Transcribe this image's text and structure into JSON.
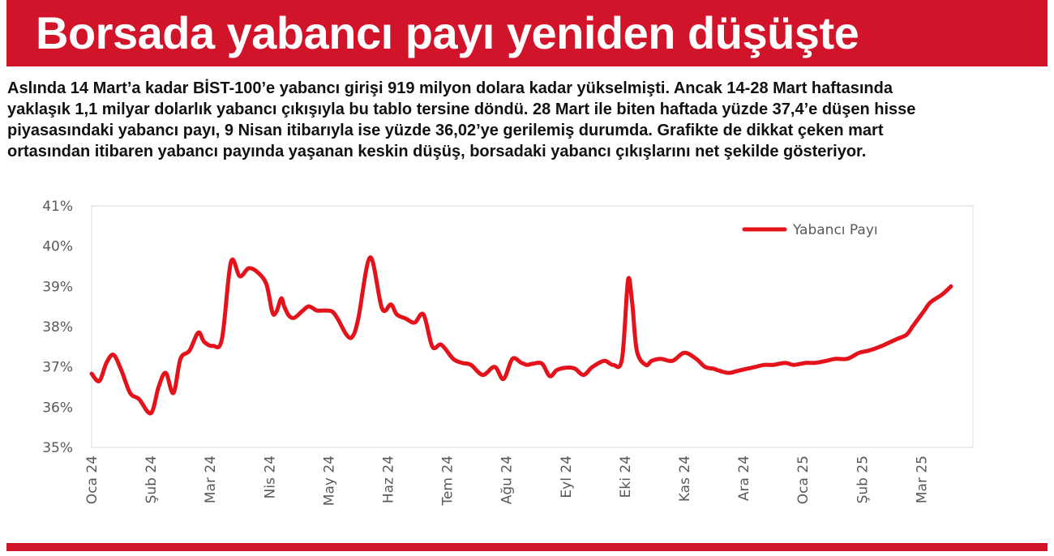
{
  "header": {
    "title": "Borsada yabancı payı yeniden düşüşte"
  },
  "article": {
    "lines": [
      "Aslında 14 Mart’a kadar BİST-100’e yabancı girişi 919 milyon dolara kadar yükselmişti. Ancak 14-28 Mart haftasında",
      "yaklaşık 1,1 milyar dolarlık yabancı çıkışıyla bu tablo tersine döndü. 28 Mart ile biten haftada yüzde 37,4’e düşen hisse",
      "piyasasındaki yabancı payı, 9 Nisan itibarıyla ise yüzde 36,02’ye gerilemiş durumda. Grafikte de dikkat çeken mart",
      "ortasından itibaren yabancı payında yaşanan keskin düşüş, borsadaki yabancı çıkışlarını net şekilde gösteriyor."
    ]
  },
  "colors": {
    "accent": "#d2142a",
    "line": "#e3121b",
    "axis": "#d9d9d9",
    "text": "#595959"
  },
  "chart_data": {
    "type": "line",
    "title": "",
    "xlabel": "",
    "ylabel": "",
    "ylim": [
      35,
      41
    ],
    "yticks": [
      "35%",
      "36%",
      "37%",
      "38%",
      "39%",
      "40%",
      "41%"
    ],
    "grid": false,
    "legend_position": "top-right",
    "categories": [
      "Oca 24",
      "Şub 24",
      "Mar 24",
      "Nis 24",
      "May 24",
      "Haz 24",
      "Tem 24",
      "Ağu 24",
      "Eyl 24",
      "Eki 24",
      "Kas 24",
      "Ara 24",
      "Oca 25",
      "Şub 25",
      "Mar 25"
    ],
    "series": [
      {
        "name": "Yabancı Payı",
        "x": [
          0,
          0.13,
          0.25,
          0.37,
          0.5,
          0.65,
          0.8,
          1.0,
          1.13,
          1.25,
          1.38,
          1.5,
          1.65,
          1.8,
          1.9,
          2.05,
          2.2,
          2.35,
          2.5,
          2.65,
          2.8,
          2.95,
          3.05,
          3.12,
          3.2,
          3.25,
          3.33,
          3.42,
          3.55,
          3.65,
          3.72,
          3.8,
          3.9,
          4.05,
          4.15,
          4.3,
          4.4,
          4.5,
          4.7,
          4.9,
          5.05,
          5.15,
          5.3,
          5.45,
          5.6,
          5.75,
          5.9,
          6.1,
          6.25,
          6.4,
          6.6,
          6.8,
          6.95,
          7.1,
          7.25,
          7.35,
          7.45,
          7.6,
          7.73,
          7.85,
          8.0,
          8.15,
          8.3,
          8.45,
          8.65,
          8.8,
          8.95,
          9.05,
          9.12,
          9.2,
          9.35,
          9.45,
          9.6,
          9.8,
          10.0,
          10.2,
          10.35,
          10.5,
          10.6,
          10.75,
          10.9,
          11.05,
          11.2,
          11.35,
          11.5,
          11.7,
          11.85,
          12.05,
          12.2,
          12.4,
          12.55,
          12.75,
          12.95,
          13.1,
          13.3,
          13.45,
          13.6,
          13.75,
          13.85,
          13.95,
          14.05,
          14.15,
          14.35,
          14.5
        ],
        "values": [
          36.83,
          36.65,
          37.1,
          37.3,
          36.92,
          36.35,
          36.2,
          35.85,
          36.5,
          36.85,
          36.35,
          37.2,
          37.4,
          37.85,
          37.62,
          37.52,
          37.7,
          39.6,
          39.25,
          39.45,
          39.35,
          39.05,
          38.35,
          38.38,
          38.7,
          38.5,
          38.27,
          38.22,
          38.38,
          38.5,
          38.47,
          38.4,
          38.4,
          38.38,
          38.2,
          37.8,
          37.75,
          38.2,
          39.72,
          38.45,
          38.55,
          38.3,
          38.2,
          38.1,
          38.3,
          37.5,
          37.55,
          37.2,
          37.1,
          37.05,
          36.8,
          37.0,
          36.7,
          37.2,
          37.1,
          37.05,
          37.08,
          37.08,
          36.77,
          36.92,
          36.98,
          36.96,
          36.8,
          37.0,
          37.15,
          37.05,
          37.2,
          39.15,
          38.6,
          37.4,
          37.05,
          37.15,
          37.2,
          37.15,
          37.35,
          37.2,
          37.0,
          36.95,
          36.9,
          36.85,
          36.9,
          36.95,
          37.0,
          37.05,
          37.05,
          37.1,
          37.05,
          37.1,
          37.1,
          37.15,
          37.2,
          37.2,
          37.35,
          37.4,
          37.5,
          37.6,
          37.7,
          37.8,
          38.0,
          38.2,
          38.4,
          38.6,
          38.8,
          39.0
        ]
      }
    ]
  }
}
